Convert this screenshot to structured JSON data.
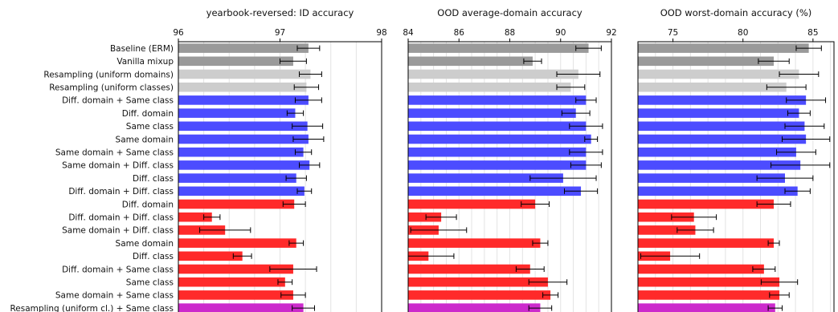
{
  "chart_data": {
    "type": "bar",
    "orientation": "horizontal",
    "error_bars": true,
    "grid": "vertical",
    "colors": {
      "dark_gray": "#9a9a9a",
      "light_gray": "#cdcdcd",
      "blue": "#4c4cff",
      "red": "#ff2a2a",
      "magenta": "#cc2acc",
      "grid": "#e3e3e3"
    },
    "categories": [
      "Baseline (ERM)",
      "Vanilla mixup",
      "Resampling (uniform domains)",
      "Resampling (uniform classes)",
      "Diff. domain + Same class",
      "Diff. domain",
      "Same class",
      "Same domain",
      "Same domain + Same class",
      "Same domain + Diff. class",
      "Diff. class",
      "Diff. domain + Diff. class",
      "Diff. domain",
      "Diff. domain + Diff. class",
      "Same domain + Diff. class",
      "Same domain",
      "Diff. class",
      "Diff. domain + Same class",
      "Same class",
      "Same domain + Same class",
      "Resampling (uniform cl.) + Same class"
    ],
    "bar_colors": [
      "dark_gray",
      "dark_gray",
      "light_gray",
      "light_gray",
      "blue",
      "blue",
      "blue",
      "blue",
      "blue",
      "blue",
      "blue",
      "blue",
      "red",
      "red",
      "red",
      "red",
      "red",
      "red",
      "red",
      "red",
      "magenta"
    ],
    "panels": [
      {
        "title": "yearbook-reversed: ID accuracy",
        "xlim": [
          96,
          98
        ],
        "xticks": [
          96,
          97,
          98
        ],
        "values": [
          97.28,
          97.13,
          97.3,
          97.26,
          97.28,
          97.15,
          97.27,
          97.28,
          97.23,
          97.29,
          97.16,
          97.24,
          97.14,
          96.33,
          96.46,
          97.16,
          96.63,
          97.13,
          97.05,
          97.13,
          97.23
        ],
        "errors": [
          0.11,
          0.13,
          0.11,
          0.12,
          0.13,
          0.08,
          0.15,
          0.15,
          0.08,
          0.1,
          0.1,
          0.07,
          0.11,
          0.08,
          0.25,
          0.07,
          0.09,
          0.23,
          0.07,
          0.12,
          0.11
        ]
      },
      {
        "title": "OOD average-domain accuracy",
        "xlim": [
          84,
          92
        ],
        "xticks": [
          84,
          86,
          88,
          90,
          92
        ],
        "values": [
          91.1,
          88.9,
          90.7,
          90.4,
          91.0,
          90.6,
          91.0,
          91.2,
          91.0,
          91.0,
          90.1,
          90.8,
          89.0,
          85.3,
          85.2,
          89.2,
          84.8,
          88.8,
          89.5,
          89.6,
          89.2
        ],
        "errors": [
          0.5,
          0.35,
          0.85,
          0.55,
          0.4,
          0.55,
          0.65,
          0.25,
          0.65,
          0.6,
          1.3,
          0.65,
          0.55,
          0.6,
          1.1,
          0.3,
          1.0,
          0.55,
          0.75,
          0.3,
          0.45
        ]
      },
      {
        "title": "OOD worst-domain accuracy (%)",
        "xlim": [
          72.5,
          86.5
        ],
        "xticks": [
          75,
          80,
          85
        ],
        "values": [
          84.7,
          82.2,
          84.0,
          83.1,
          84.5,
          84.0,
          84.4,
          84.5,
          83.8,
          84.1,
          83.0,
          83.9,
          82.2,
          76.5,
          76.6,
          82.2,
          74.8,
          81.5,
          82.6,
          82.6,
          82.3
        ],
        "errors": [
          0.9,
          1.1,
          1.4,
          1.4,
          1.4,
          0.8,
          1.4,
          1.7,
          1.4,
          2.1,
          2.0,
          0.9,
          1.2,
          1.6,
          1.3,
          0.4,
          2.1,
          0.8,
          1.3,
          0.7,
          0.5
        ]
      }
    ]
  }
}
